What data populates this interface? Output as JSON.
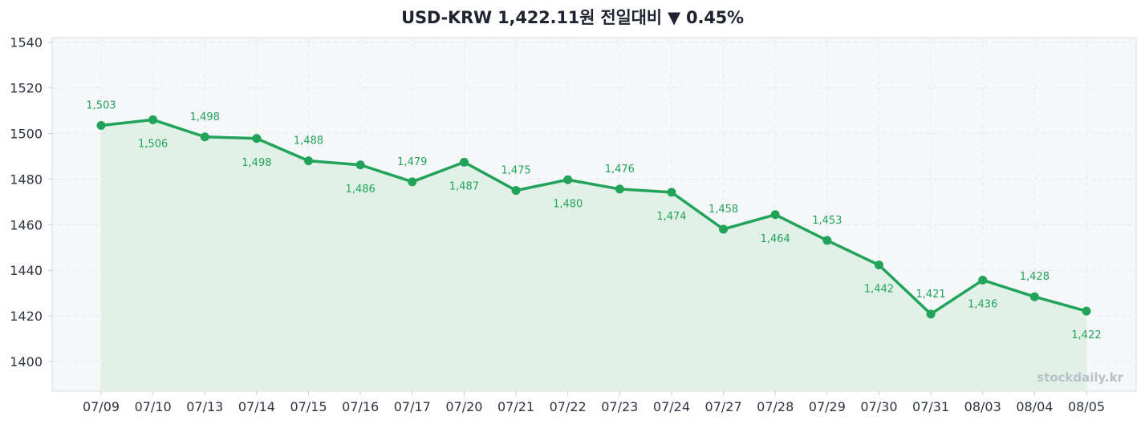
{
  "header": {
    "title_text": "USD-KRW  1,422.11원  전일대비 ▼ 0.45%"
  },
  "watermark": "stockdaily.kr",
  "colors": {
    "line": "#22a35a",
    "area": "#dff0e6",
    "plot_bg": "#f6f7f9",
    "grid": "#e6e9ee",
    "label": "#22a35a"
  },
  "chart_data": {
    "type": "area",
    "title": "USD-KRW  1,422.11원  전일대비 ▼ 0.45%",
    "xlabel": "",
    "ylabel": "",
    "ylim": [
      1387,
      1542
    ],
    "yticks": [
      1400,
      1420,
      1440,
      1460,
      1480,
      1500,
      1520,
      1540
    ],
    "grid": true,
    "categories": [
      "07/09",
      "07/10",
      "07/13",
      "07/14",
      "07/15",
      "07/16",
      "07/17",
      "07/20",
      "07/21",
      "07/22",
      "07/23",
      "07/24",
      "07/27",
      "07/28",
      "07/29",
      "07/30",
      "07/31",
      "08/03",
      "08/04",
      "08/05"
    ],
    "series": [
      {
        "values": [
          1503.5,
          1506,
          1498.5,
          1497.8,
          1488,
          1486.2,
          1478.8,
          1487.4,
          1475,
          1479.7,
          1475.6,
          1474.2,
          1458,
          1464.4,
          1453.1,
          1442.3,
          1420.8,
          1435.7,
          1428.4,
          1422.1
        ],
        "labels": [
          "1,503",
          "1,506",
          "1,498",
          "1,498",
          "1,488",
          "1,486",
          "1,479",
          "1,487",
          "1,475",
          "1,480",
          "1,476",
          "1,474",
          "1,458",
          "1,464",
          "1,453",
          "1,442",
          "1,421",
          "1,436",
          "1,428",
          "1,422"
        ]
      }
    ]
  }
}
